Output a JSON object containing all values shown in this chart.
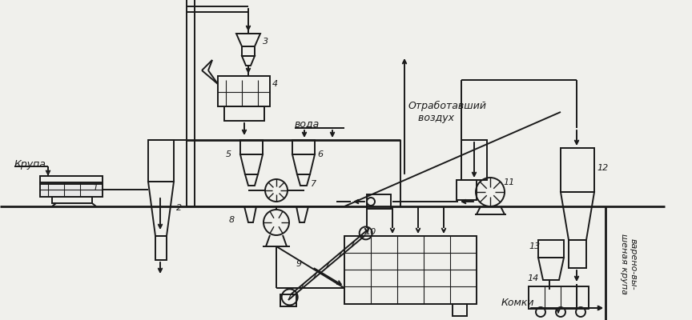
{
  "bg_color": "#f0f0ec",
  "line_color": "#1a1a1a",
  "lw": 1.4,
  "lw2": 2.0,
  "labels": {
    "krupa": "Крупа",
    "voda": "вода",
    "otrab": "Отработавший\n   воздух",
    "komki": "Комки",
    "vareno": "варено-вы-\nшеная крупа"
  }
}
